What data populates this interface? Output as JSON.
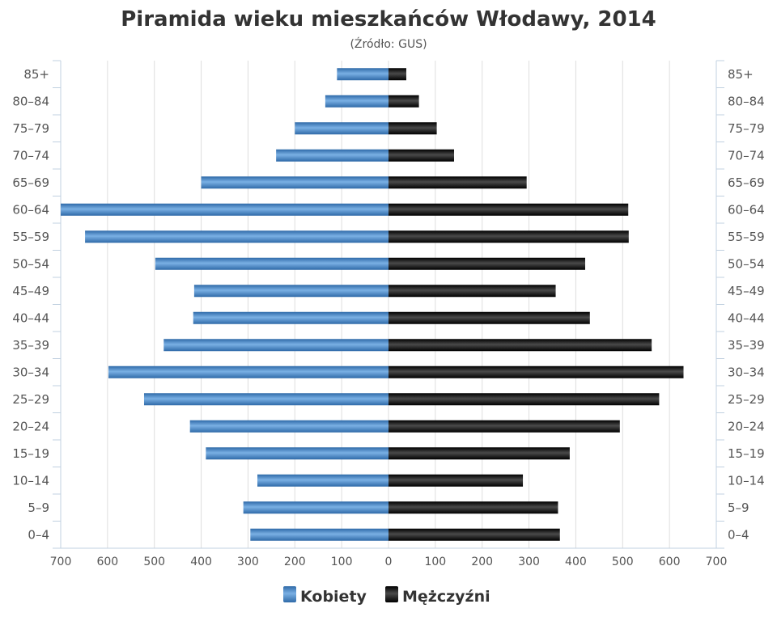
{
  "chart_data": {
    "type": "bar",
    "orientation": "horizontal",
    "layout": "population-pyramid",
    "title": "Piramida wieku mieszkańców Włodawy, 2014",
    "subtitle": "(Źródło: GUS)",
    "categories": [
      "85+",
      "80–84",
      "75–79",
      "70–74",
      "65–69",
      "60–64",
      "55–59",
      "50–54",
      "45–49",
      "40–44",
      "35–39",
      "30–34",
      "25–29",
      "20–24",
      "15–19",
      "10–14",
      "5–9",
      "0–4"
    ],
    "series": [
      {
        "name": "Kobiety",
        "side": "left",
        "color": "#4a87c8",
        "values": [
          110,
          135,
          200,
          240,
          400,
          700,
          648,
          498,
          415,
          417,
          480,
          598,
          522,
          424,
          390,
          280,
          310,
          295
        ]
      },
      {
        "name": "Mężczyźni",
        "side": "right",
        "color": "#1a1a1a",
        "values": [
          38,
          65,
          103,
          140,
          295,
          512,
          513,
          420,
          357,
          430,
          562,
          630,
          578,
          494,
          387,
          287,
          362,
          366
        ]
      }
    ],
    "xlim": [
      -700,
      700
    ],
    "x_ticks": [
      "700",
      "600",
      "500",
      "400",
      "300",
      "200",
      "100",
      "0",
      "100",
      "200",
      "300",
      "400",
      "500",
      "600",
      "700"
    ],
    "grid": true,
    "legend_position": "bottom-center"
  }
}
